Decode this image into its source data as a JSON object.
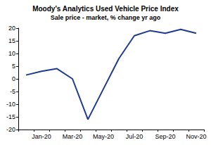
{
  "chart_data": {
    "type": "line",
    "title": "Moody's Analytics Used Vehicle Price Index",
    "subtitle": "Sale price - market, % change yr ago",
    "categories": [
      null,
      "Jan-20",
      null,
      "Mar-20",
      null,
      "May-20",
      null,
      "Jul-20",
      null,
      "Sep-20",
      null,
      "Nov-20"
    ],
    "values": [
      1.5,
      3,
      4,
      0,
      -16,
      -4,
      8,
      17,
      19,
      18,
      19.5,
      18
    ],
    "color": "#1f3a93",
    "ylim": [
      -20,
      20
    ],
    "yticks": [
      -20,
      -15,
      -10,
      -5,
      0,
      5,
      10,
      15,
      20
    ],
    "grid": false
  }
}
